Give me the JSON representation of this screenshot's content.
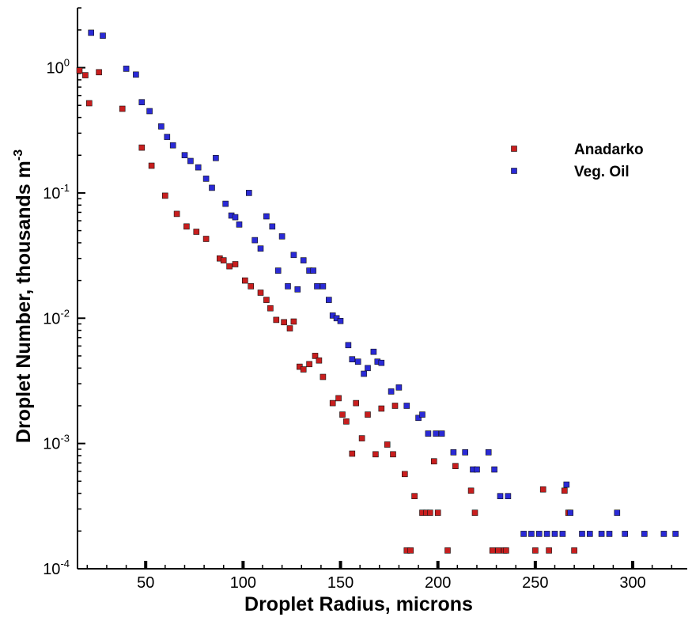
{
  "chart_data": {
    "type": "scatter",
    "xlabel": "Droplet Radius, microns",
    "ylabel": "Droplet Number, thousands m",
    "ylabel_sup": "-3",
    "xlim": [
      15,
      328
    ],
    "ylim": [
      0.0001,
      3.0
    ],
    "yscale": "log",
    "x_ticks": [
      50,
      100,
      150,
      200,
      250,
      300
    ],
    "y_ticks": [
      {
        "value": 1,
        "base": "10",
        "exp": "0"
      },
      {
        "value": 0.1,
        "base": "10",
        "exp": "-1"
      },
      {
        "value": 0.01,
        "base": "10",
        "exp": "-2"
      },
      {
        "value": 0.001,
        "base": "10",
        "exp": "-3"
      },
      {
        "value": 0.0001,
        "base": "10",
        "exp": "-4"
      }
    ],
    "legend_position": "top-right",
    "series": [
      {
        "name": "Anadarko",
        "color": "#c81e1e",
        "points": [
          [
            16,
            0.95
          ],
          [
            19,
            0.87
          ],
          [
            21,
            0.52
          ],
          [
            26,
            0.92
          ],
          [
            38,
            0.47
          ],
          [
            48,
            0.23
          ],
          [
            53,
            0.165
          ],
          [
            60,
            0.095
          ],
          [
            66,
            0.068
          ],
          [
            71,
            0.054
          ],
          [
            76,
            0.049
          ],
          [
            81,
            0.043
          ],
          [
            88,
            0.03
          ],
          [
            90,
            0.029
          ],
          [
            93,
            0.026
          ],
          [
            96,
            0.027
          ],
          [
            101,
            0.02
          ],
          [
            104,
            0.018
          ],
          [
            109,
            0.016
          ],
          [
            112,
            0.014
          ],
          [
            114,
            0.012
          ],
          [
            117,
            0.0097
          ],
          [
            121,
            0.0093
          ],
          [
            124,
            0.0083
          ],
          [
            126,
            0.0094
          ],
          [
            129,
            0.0041
          ],
          [
            131,
            0.0039
          ],
          [
            134,
            0.0043
          ],
          [
            137,
            0.005
          ],
          [
            139,
            0.0046
          ],
          [
            141,
            0.0034
          ],
          [
            146,
            0.0021
          ],
          [
            149,
            0.0023
          ],
          [
            151,
            0.0017
          ],
          [
            153,
            0.0015
          ],
          [
            156,
            0.00083
          ],
          [
            158,
            0.0021
          ],
          [
            161,
            0.0011
          ],
          [
            164,
            0.0017
          ],
          [
            168,
            0.00082
          ],
          [
            171,
            0.0019
          ],
          [
            174,
            0.00098
          ],
          [
            177,
            0.00082
          ],
          [
            178,
            0.002
          ],
          [
            183,
            0.00057
          ],
          [
            184,
            0.00014
          ],
          [
            186,
            0.00014
          ],
          [
            188,
            0.00038
          ],
          [
            192,
            0.00028
          ],
          [
            194,
            0.00028
          ],
          [
            196,
            0.00028
          ],
          [
            198,
            0.00072
          ],
          [
            200,
            0.00028
          ],
          [
            205,
            0.00014
          ],
          [
            209,
            0.00066
          ],
          [
            217,
            0.00042
          ],
          [
            219,
            0.00028
          ],
          [
            228,
            0.00014
          ],
          [
            231,
            0.00014
          ],
          [
            234,
            0.00014
          ],
          [
            235,
            0.00014
          ],
          [
            250,
            0.00014
          ],
          [
            254,
            0.00043
          ],
          [
            257,
            0.00014
          ],
          [
            265,
            0.00042
          ],
          [
            267,
            0.00028
          ],
          [
            270,
            0.00014
          ]
        ]
      },
      {
        "name": "Veg. Oil",
        "color": "#2a2ad6",
        "points": [
          [
            22,
            1.9
          ],
          [
            28,
            1.8
          ],
          [
            40,
            0.98
          ],
          [
            45,
            0.88
          ],
          [
            48,
            0.53
          ],
          [
            52,
            0.45
          ],
          [
            58,
            0.34
          ],
          [
            61,
            0.28
          ],
          [
            64,
            0.24
          ],
          [
            70,
            0.2
          ],
          [
            73,
            0.18
          ],
          [
            77,
            0.16
          ],
          [
            81,
            0.13
          ],
          [
            84,
            0.11
          ],
          [
            86,
            0.19
          ],
          [
            91,
            0.082
          ],
          [
            94,
            0.066
          ],
          [
            96,
            0.064
          ],
          [
            98,
            0.056
          ],
          [
            103,
            0.1
          ],
          [
            106,
            0.042
          ],
          [
            109,
            0.036
          ],
          [
            112,
            0.065
          ],
          [
            115,
            0.054
          ],
          [
            118,
            0.024
          ],
          [
            120,
            0.045
          ],
          [
            123,
            0.018
          ],
          [
            126,
            0.032
          ],
          [
            128,
            0.017
          ],
          [
            131,
            0.029
          ],
          [
            134,
            0.024
          ],
          [
            136,
            0.024
          ],
          [
            138,
            0.018
          ],
          [
            141,
            0.018
          ],
          [
            144,
            0.014
          ],
          [
            146,
            0.0105
          ],
          [
            148,
            0.01
          ],
          [
            150,
            0.0095
          ],
          [
            154,
            0.0061
          ],
          [
            156,
            0.0047
          ],
          [
            159,
            0.0045
          ],
          [
            162,
            0.0036
          ],
          [
            164,
            0.004
          ],
          [
            167,
            0.0054
          ],
          [
            169,
            0.0045
          ],
          [
            171,
            0.0044
          ],
          [
            176,
            0.0026
          ],
          [
            180,
            0.0028
          ],
          [
            184,
            0.002
          ],
          [
            190,
            0.0016
          ],
          [
            192,
            0.0017
          ],
          [
            195,
            0.0012
          ],
          [
            199,
            0.0012
          ],
          [
            202,
            0.0012
          ],
          [
            208,
            0.00085
          ],
          [
            214,
            0.00085
          ],
          [
            218,
            0.00062
          ],
          [
            220,
            0.00062
          ],
          [
            226,
            0.00085
          ],
          [
            229,
            0.00062
          ],
          [
            232,
            0.00038
          ],
          [
            236,
            0.00038
          ],
          [
            244,
            0.00019
          ],
          [
            248,
            0.00019
          ],
          [
            252,
            0.00019
          ],
          [
            256,
            0.00019
          ],
          [
            260,
            0.00019
          ],
          [
            264,
            0.00019
          ],
          [
            266,
            0.00047
          ],
          [
            268,
            0.00028
          ],
          [
            274,
            0.00019
          ],
          [
            278,
            0.00019
          ],
          [
            284,
            0.00019
          ],
          [
            288,
            0.00019
          ],
          [
            292,
            0.00028
          ],
          [
            296,
            0.00019
          ],
          [
            306,
            0.00019
          ],
          [
            316,
            0.00019
          ],
          [
            322,
            0.00019
          ]
        ]
      }
    ]
  }
}
